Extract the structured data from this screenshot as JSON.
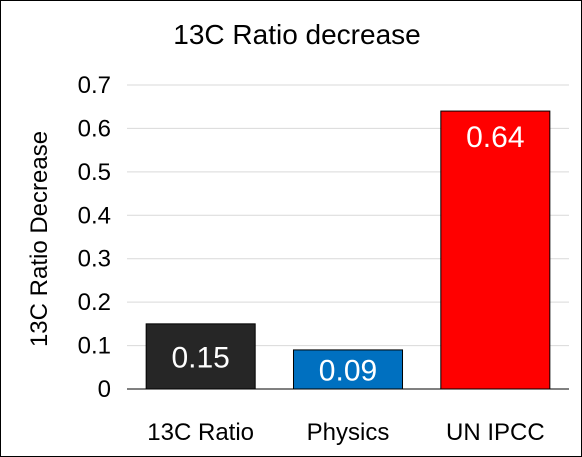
{
  "chart_data": {
    "type": "bar",
    "title": "13C Ratio decrease",
    "xlabel": "",
    "ylabel": "13C Ratio Decrease",
    "categories": [
      "13C Ratio",
      "Physics",
      "UN IPCC"
    ],
    "values": [
      0.15,
      0.09,
      0.64
    ],
    "data_labels": [
      "0.15",
      "0.09",
      "0.64"
    ],
    "bar_colors": [
      "#262626",
      "#0070c0",
      "#ff0000"
    ],
    "ylim": [
      0,
      0.7
    ],
    "yticks": [
      "0",
      "0.1",
      "0.2",
      "0.3",
      "0.4",
      "0.5",
      "0.6",
      "0.7"
    ],
    "grid": true,
    "legend": "none"
  }
}
